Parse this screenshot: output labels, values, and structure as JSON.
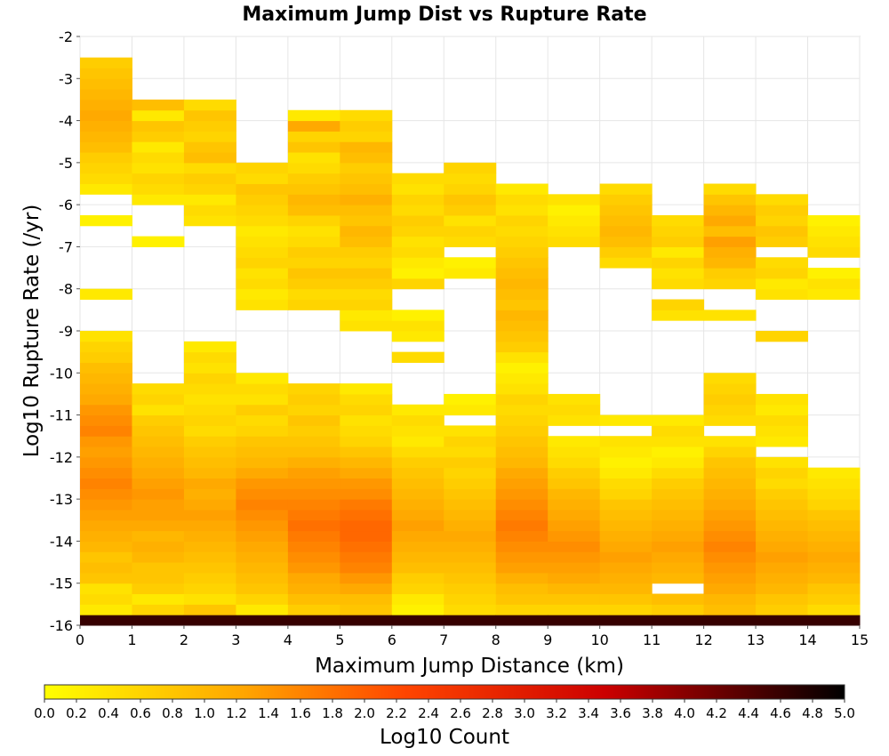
{
  "chart_data": {
    "type": "heatmap",
    "title": "Maximum Jump Dist vs Rupture Rate",
    "xlabel": "Maximum Jump Distance (km)",
    "ylabel": "Log10 Rupture Rate (/yr)",
    "xlim": [
      0,
      15
    ],
    "ylim": [
      -16,
      -2
    ],
    "x_ticks": [
      "0",
      "1",
      "2",
      "3",
      "4",
      "5",
      "6",
      "7",
      "8",
      "9",
      "10",
      "11",
      "12",
      "13",
      "14",
      "15"
    ],
    "y_ticks": [
      "-2",
      "-3",
      "-4",
      "-5",
      "-6",
      "-7",
      "-8",
      "-9",
      "-10",
      "-11",
      "-12",
      "-13",
      "-14",
      "-15",
      "-16"
    ],
    "x_bin_width": 1,
    "y_bin_width": 0.25,
    "y_bin_start": -16,
    "colorbar": {
      "label": "Log10 Count",
      "min": 0.0,
      "max": 5.0,
      "ticks": [
        "0.0",
        "0.2",
        "0.4",
        "0.6",
        "0.8",
        "1.0",
        "1.2",
        "1.4",
        "1.6",
        "1.8",
        "2.0",
        "2.2",
        "2.4",
        "2.6",
        "2.8",
        "3.0",
        "3.2",
        "3.4",
        "3.6",
        "3.8",
        "4.0",
        "4.2",
        "4.4",
        "4.6",
        "4.8",
        "5.0"
      ],
      "gradient": [
        "#ffff00",
        "#ffa500",
        "#ff4500",
        "#cc0000",
        "#000000"
      ]
    },
    "grid": true,
    "columns": [
      {
        "x": 0,
        "values": [
          4.6,
          0.3,
          0.5,
          0.4,
          0.8,
          0.9,
          0.8,
          1.0,
          1.1,
          1.2,
          1.3,
          1.4,
          1.5,
          1.6,
          1.5,
          1.4,
          1.3,
          1.4,
          1.6,
          1.5,
          1.4,
          1.2,
          1.1,
          1.0,
          0.9,
          0.7,
          0.6,
          0.4,
          null,
          null,
          null,
          0.3,
          null,
          null,
          null,
          null,
          null,
          null,
          0.2,
          null,
          null,
          0.3,
          0.5,
          0.6,
          0.7,
          0.9,
          1.0,
          1.1,
          1.2,
          1.1,
          1.0,
          0.9,
          0.8,
          0.7
        ]
      },
      {
        "x": 1,
        "values": [
          4.6,
          0.6,
          0.3,
          0.7,
          0.8,
          0.8,
          1.0,
          1.1,
          1.0,
          1.2,
          1.3,
          1.3,
          1.4,
          1.3,
          1.2,
          1.1,
          1.0,
          0.9,
          0.8,
          0.7,
          0.4,
          0.6,
          0.5,
          null,
          null,
          null,
          null,
          null,
          null,
          null,
          null,
          null,
          null,
          null,
          null,
          null,
          0.2,
          null,
          null,
          null,
          0.3,
          0.5,
          0.6,
          0.4,
          0.5,
          0.3,
          0.7,
          0.8,
          0.3,
          0.9
        ]
      },
      {
        "x": 2,
        "values": [
          4.6,
          0.8,
          0.4,
          0.6,
          0.7,
          0.8,
          0.9,
          1.0,
          1.1,
          1.2,
          1.3,
          1.2,
          1.1,
          1.2,
          1.0,
          0.9,
          0.8,
          0.7,
          0.5,
          0.6,
          0.5,
          0.4,
          0.5,
          0.6,
          0.4,
          0.5,
          0.3,
          null,
          null,
          null,
          null,
          null,
          null,
          null,
          null,
          null,
          null,
          null,
          0.4,
          0.5,
          0.3,
          0.6,
          0.7,
          0.5,
          0.9,
          0.8,
          0.6,
          0.7,
          0.8,
          0.5
        ]
      },
      {
        "x": 3,
        "values": [
          4.6,
          0.3,
          0.6,
          0.8,
          0.9,
          1.0,
          1.1,
          1.2,
          1.3,
          1.4,
          1.5,
          1.6,
          1.5,
          1.4,
          1.2,
          1.0,
          0.9,
          0.8,
          0.6,
          0.5,
          0.7,
          0.4,
          0.5,
          0.3,
          null,
          null,
          null,
          null,
          null,
          null,
          0.4,
          0.3,
          0.5,
          0.4,
          0.6,
          0.5,
          0.4,
          0.3,
          0.5,
          0.6,
          0.7,
          0.8,
          0.5,
          0.6
        ]
      },
      {
        "x": 4,
        "values": [
          4.6,
          0.7,
          0.9,
          1.1,
          1.2,
          1.4,
          1.5,
          1.6,
          1.7,
          1.8,
          1.7,
          1.6,
          1.5,
          1.4,
          1.3,
          1.1,
          0.9,
          0.8,
          0.7,
          0.8,
          0.6,
          0.7,
          0.6,
          null,
          null,
          null,
          null,
          null,
          null,
          null,
          0.6,
          0.5,
          0.7,
          0.8,
          0.6,
          0.7,
          0.5,
          0.4,
          0.6,
          0.9,
          1.0,
          0.8,
          0.7,
          0.5,
          0.4,
          0.8,
          0.6,
          1.2,
          0.3
        ]
      },
      {
        "x": 5,
        "values": [
          4.6,
          0.8,
          0.9,
          1.2,
          1.4,
          1.6,
          1.7,
          1.8,
          1.9,
          1.9,
          1.8,
          1.7,
          1.5,
          1.4,
          1.2,
          1.0,
          0.8,
          0.6,
          0.5,
          0.4,
          0.6,
          0.5,
          0.3,
          null,
          null,
          null,
          null,
          null,
          0.4,
          0.3,
          0.6,
          0.5,
          0.7,
          0.8,
          0.6,
          0.7,
          0.9,
          1.0,
          0.8,
          0.9,
          1.1,
          0.9,
          0.8,
          0.7,
          0.9,
          1.0,
          0.6,
          0.7,
          0.5
        ]
      },
      {
        "x": 6,
        "values": [
          4.6,
          0.2,
          0.3,
          0.6,
          0.7,
          0.9,
          1.0,
          1.1,
          1.2,
          1.3,
          1.2,
          1.1,
          1.0,
          0.9,
          0.8,
          0.7,
          0.5,
          0.3,
          0.4,
          0.5,
          0.3,
          null,
          null,
          null,
          null,
          0.5,
          null,
          0.3,
          0.4,
          0.2,
          null,
          null,
          0.6,
          0.2,
          0.3,
          0.5,
          0.4,
          0.6,
          0.7,
          0.5,
          0.6,
          0.4,
          0.5
        ]
      },
      {
        "x": 7,
        "values": [
          4.6,
          0.5,
          0.6,
          0.7,
          0.8,
          0.9,
          1.0,
          1.1,
          1.2,
          1.1,
          1.0,
          0.9,
          0.8,
          0.7,
          0.6,
          0.7,
          0.5,
          0.6,
          0.4,
          null,
          0.3,
          0.2,
          null,
          null,
          null,
          null,
          null,
          null,
          null,
          null,
          null,
          null,
          null,
          0.3,
          0.2,
          null,
          0.5,
          0.6,
          0.4,
          0.7,
          0.8,
          0.6,
          0.5,
          0.6
        ]
      },
      {
        "x": 8,
        "values": [
          4.6,
          0.6,
          0.8,
          0.9,
          1.1,
          1.3,
          1.4,
          1.5,
          1.6,
          1.7,
          1.6,
          1.5,
          1.4,
          1.3,
          1.2,
          1.0,
          0.9,
          0.8,
          0.7,
          0.6,
          0.5,
          0.6,
          0.4,
          0.3,
          0.2,
          0.4,
          0.7,
          0.8,
          0.9,
          1.0,
          0.8,
          0.9,
          1.0,
          0.9,
          0.8,
          0.7,
          0.6,
          0.5,
          0.6,
          0.4,
          0.5,
          0.3
        ]
      },
      {
        "x": 9,
        "values": [
          4.6,
          0.6,
          0.8,
          1.0,
          1.2,
          1.3,
          1.4,
          1.5,
          1.4,
          1.3,
          1.2,
          1.1,
          1.0,
          0.8,
          0.7,
          0.5,
          0.4,
          0.3,
          null,
          0.4,
          0.5,
          0.4,
          null,
          null,
          null,
          null,
          null,
          null,
          null,
          null,
          null,
          null,
          null,
          null,
          null,
          null,
          0.5,
          0.4,
          0.3,
          0.2,
          0.4
        ]
      },
      {
        "x": 10,
        "values": [
          4.6,
          0.6,
          0.8,
          1.0,
          1.1,
          1.2,
          1.3,
          1.2,
          1.1,
          1.0,
          0.9,
          0.8,
          0.6,
          0.5,
          0.3,
          0.2,
          0.3,
          0.4,
          null,
          0.3,
          null,
          null,
          null,
          null,
          null,
          null,
          null,
          null,
          null,
          null,
          null,
          null,
          null,
          null,
          0.5,
          0.7,
          0.9,
          1.0,
          0.9,
          0.8,
          0.7,
          0.5
        ]
      },
      {
        "x": 11,
        "values": [
          4.6,
          0.7,
          0.9,
          null,
          1.0,
          1.1,
          1.2,
          1.3,
          1.2,
          1.1,
          1.0,
          0.9,
          0.8,
          0.7,
          0.5,
          0.3,
          0.2,
          0.4,
          0.5,
          0.3,
          null,
          null,
          null,
          null,
          null,
          null,
          null,
          null,
          null,
          0.4,
          0.6,
          null,
          0.5,
          0.4,
          0.6,
          0.3,
          0.7,
          0.6,
          0.5
        ]
      },
      {
        "x": 12,
        "values": [
          4.6,
          0.9,
          1.0,
          1.2,
          1.3,
          1.4,
          1.5,
          1.6,
          1.5,
          1.4,
          1.3,
          1.2,
          1.1,
          1.0,
          0.9,
          0.8,
          0.6,
          0.4,
          null,
          0.5,
          0.6,
          0.7,
          0.6,
          0.5,
          null,
          null,
          null,
          null,
          null,
          0.4,
          null,
          null,
          0.6,
          0.7,
          1.0,
          1.1,
          1.3,
          0.9,
          1.2,
          1.0,
          0.8,
          0.5
        ]
      },
      {
        "x": 13,
        "values": [
          4.6,
          0.7,
          0.8,
          1.0,
          1.1,
          1.2,
          1.3,
          1.2,
          1.1,
          1.0,
          0.9,
          0.8,
          0.7,
          0.5,
          0.6,
          0.4,
          null,
          0.3,
          0.4,
          0.5,
          0.3,
          0.4,
          null,
          null,
          null,
          null,
          null,
          0.6,
          null,
          null,
          null,
          0.4,
          0.3,
          0.6,
          0.5,
          null,
          0.7,
          0.8,
          0.6,
          0.7,
          0.5
        ]
      },
      {
        "x": 14,
        "values": [
          4.6,
          0.5,
          0.7,
          0.8,
          1.0,
          1.1,
          1.2,
          1.1,
          1.0,
          0.9,
          0.8,
          0.6,
          0.5,
          0.4,
          0.3,
          null,
          null,
          null,
          null,
          null,
          null,
          null,
          null,
          null,
          null,
          null,
          null,
          null,
          null,
          null,
          null,
          0.3,
          0.4,
          0.2,
          null,
          0.5,
          0.4,
          0.3,
          0.2
        ]
      }
    ]
  }
}
